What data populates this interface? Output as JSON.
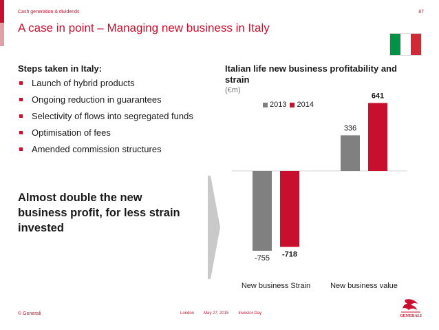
{
  "header": {
    "section": "Cash generation & dividends",
    "page_number": "87",
    "title": "A case in point – Managing new business in Italy"
  },
  "flag": {
    "colors": [
      "#009246",
      "#ffffff",
      "#ce2b37"
    ]
  },
  "left": {
    "steps_heading": "Steps taken in Italy:",
    "steps": [
      "Launch of hybrid products",
      "Ongoing reduction in guarantees",
      "Selectivity of flows into segregated funds",
      "Optimisation of fees",
      "Amended commission structures"
    ],
    "conclusion": "Almost double the new business profit, for less strain invested"
  },
  "chart_data": {
    "type": "bar",
    "title": "Italian life new business profitability and strain",
    "unit": "(€m)",
    "categories": [
      "New business Strain",
      "New business value"
    ],
    "series": [
      {
        "name": "2013",
        "values": [
          -755,
          336
        ],
        "color": "#808080"
      },
      {
        "name": "2014",
        "values": [
          -718,
          641
        ],
        "color": "#c8102e"
      }
    ],
    "data_labels": [
      [
        "-755",
        "336"
      ],
      [
        "-718",
        "641"
      ]
    ],
    "legend_position": "top",
    "ylim": [
      -800,
      700
    ],
    "grid": false
  },
  "footer": {
    "copyright": "© Generali",
    "location": "London",
    "date": "May 27, 2015",
    "event": "Investor Day",
    "logo_text": "GENERALI"
  }
}
